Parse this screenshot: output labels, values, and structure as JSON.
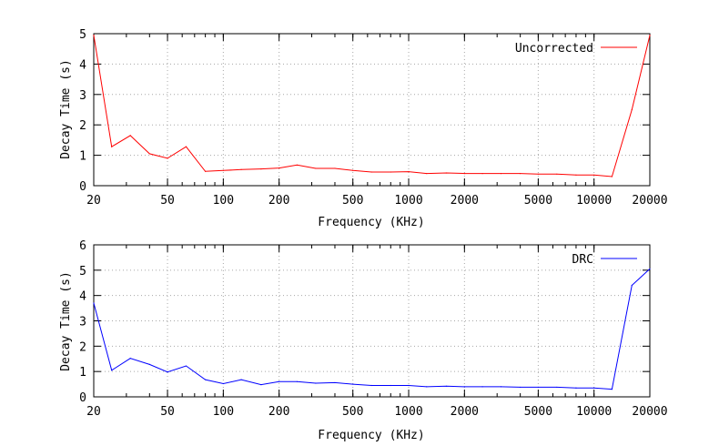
{
  "chart_data": [
    {
      "type": "line",
      "xscale": "log",
      "xlim": [
        20,
        20000
      ],
      "ylim": [
        0,
        5
      ],
      "xticks": [
        20,
        50,
        100,
        200,
        500,
        1000,
        2000,
        5000,
        10000,
        20000
      ],
      "yticks": [
        0,
        1,
        2,
        3,
        4,
        5
      ],
      "xlabel": "Frequency (KHz)",
      "ylabel": "Decay Time (s)",
      "grid": true,
      "legend": "top-right",
      "series": [
        {
          "name": "Uncorrected",
          "color": "#ff0000",
          "x": [
            20,
            25,
            31.5,
            40,
            50,
            63,
            80,
            100,
            125,
            160,
            200,
            250,
            315,
            400,
            500,
            630,
            800,
            1000,
            1250,
            1600,
            2000,
            2500,
            3150,
            4000,
            5000,
            6300,
            8000,
            10000,
            12500,
            16000,
            20000
          ],
          "y": [
            4.95,
            1.28,
            1.65,
            1.05,
            0.9,
            1.28,
            0.47,
            0.5,
            0.53,
            0.55,
            0.58,
            0.68,
            0.57,
            0.57,
            0.5,
            0.45,
            0.45,
            0.46,
            0.4,
            0.42,
            0.4,
            0.4,
            0.4,
            0.4,
            0.38,
            0.38,
            0.35,
            0.35,
            0.3,
            2.5,
            4.95
          ]
        }
      ]
    },
    {
      "type": "line",
      "xscale": "log",
      "xlim": [
        20,
        20000
      ],
      "ylim": [
        0,
        6
      ],
      "xticks": [
        20,
        50,
        100,
        200,
        500,
        1000,
        2000,
        5000,
        10000,
        20000
      ],
      "yticks": [
        0,
        1,
        2,
        3,
        4,
        5,
        6
      ],
      "xlabel": "Frequency (KHz)",
      "ylabel": "Decay Time (s)",
      "grid": true,
      "legend": "top-right",
      "series": [
        {
          "name": "DRC",
          "color": "#0000ff",
          "x": [
            20,
            25,
            31.5,
            40,
            50,
            63,
            80,
            100,
            125,
            160,
            200,
            250,
            315,
            400,
            500,
            630,
            800,
            1000,
            1250,
            1600,
            2000,
            2500,
            3150,
            4000,
            5000,
            6300,
            8000,
            10000,
            12500,
            16000,
            20000
          ],
          "y": [
            3.7,
            1.05,
            1.52,
            1.28,
            0.98,
            1.22,
            0.68,
            0.52,
            0.68,
            0.48,
            0.6,
            0.6,
            0.54,
            0.56,
            0.5,
            0.45,
            0.45,
            0.45,
            0.4,
            0.42,
            0.4,
            0.4,
            0.4,
            0.38,
            0.38,
            0.38,
            0.35,
            0.35,
            0.3,
            4.4,
            5.05
          ]
        }
      ]
    }
  ]
}
